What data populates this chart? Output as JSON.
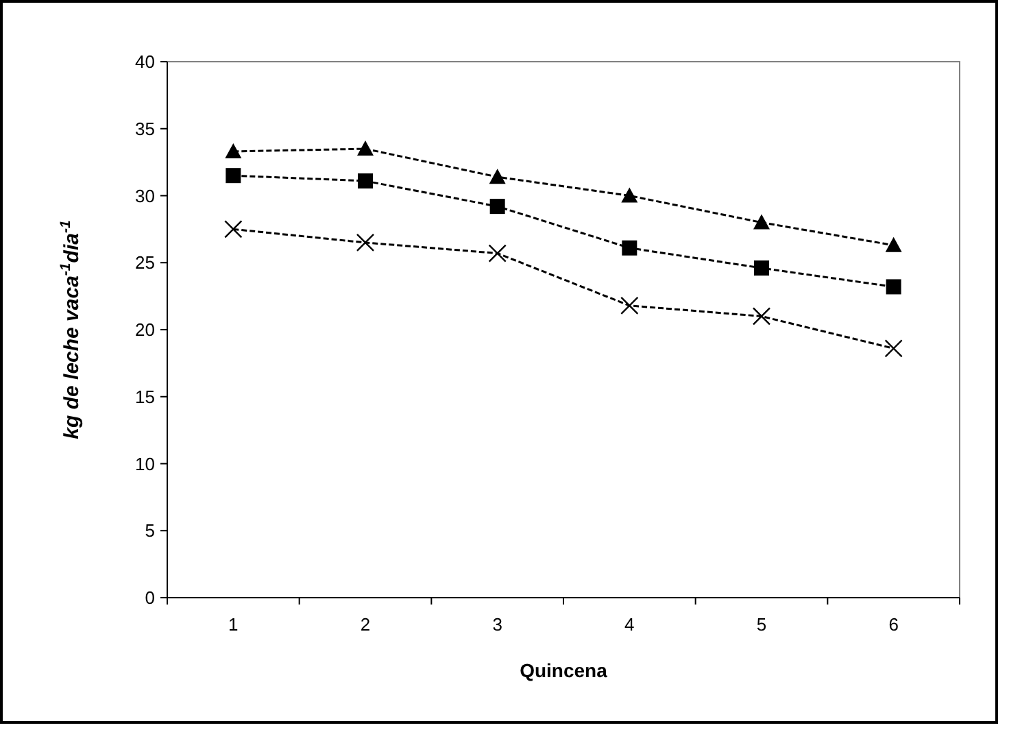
{
  "chart_data": {
    "type": "line",
    "xlabel": "Quincena",
    "ylabel": "kg de leche vaca$^{-1}$dia$^{-1}$",
    "categories": [
      "1",
      "2",
      "3",
      "4",
      "5",
      "6"
    ],
    "ylim": [
      0,
      40
    ],
    "yticks": [
      0,
      5,
      10,
      15,
      20,
      25,
      30,
      35,
      40
    ],
    "grid": false,
    "line_style": "dashed",
    "series": [
      {
        "color": "#000000",
        "marker": "triangle",
        "values": [
          33.3,
          33.5,
          31.4,
          30.0,
          28.0,
          26.3
        ]
      },
      {
        "color": "#000000",
        "marker": "square",
        "values": [
          31.5,
          31.1,
          29.2,
          26.1,
          24.6,
          23.2
        ]
      },
      {
        "color": "#000000",
        "marker": "cross",
        "values": [
          27.5,
          26.5,
          25.7,
          21.8,
          21.0,
          18.6
        ]
      }
    ]
  }
}
